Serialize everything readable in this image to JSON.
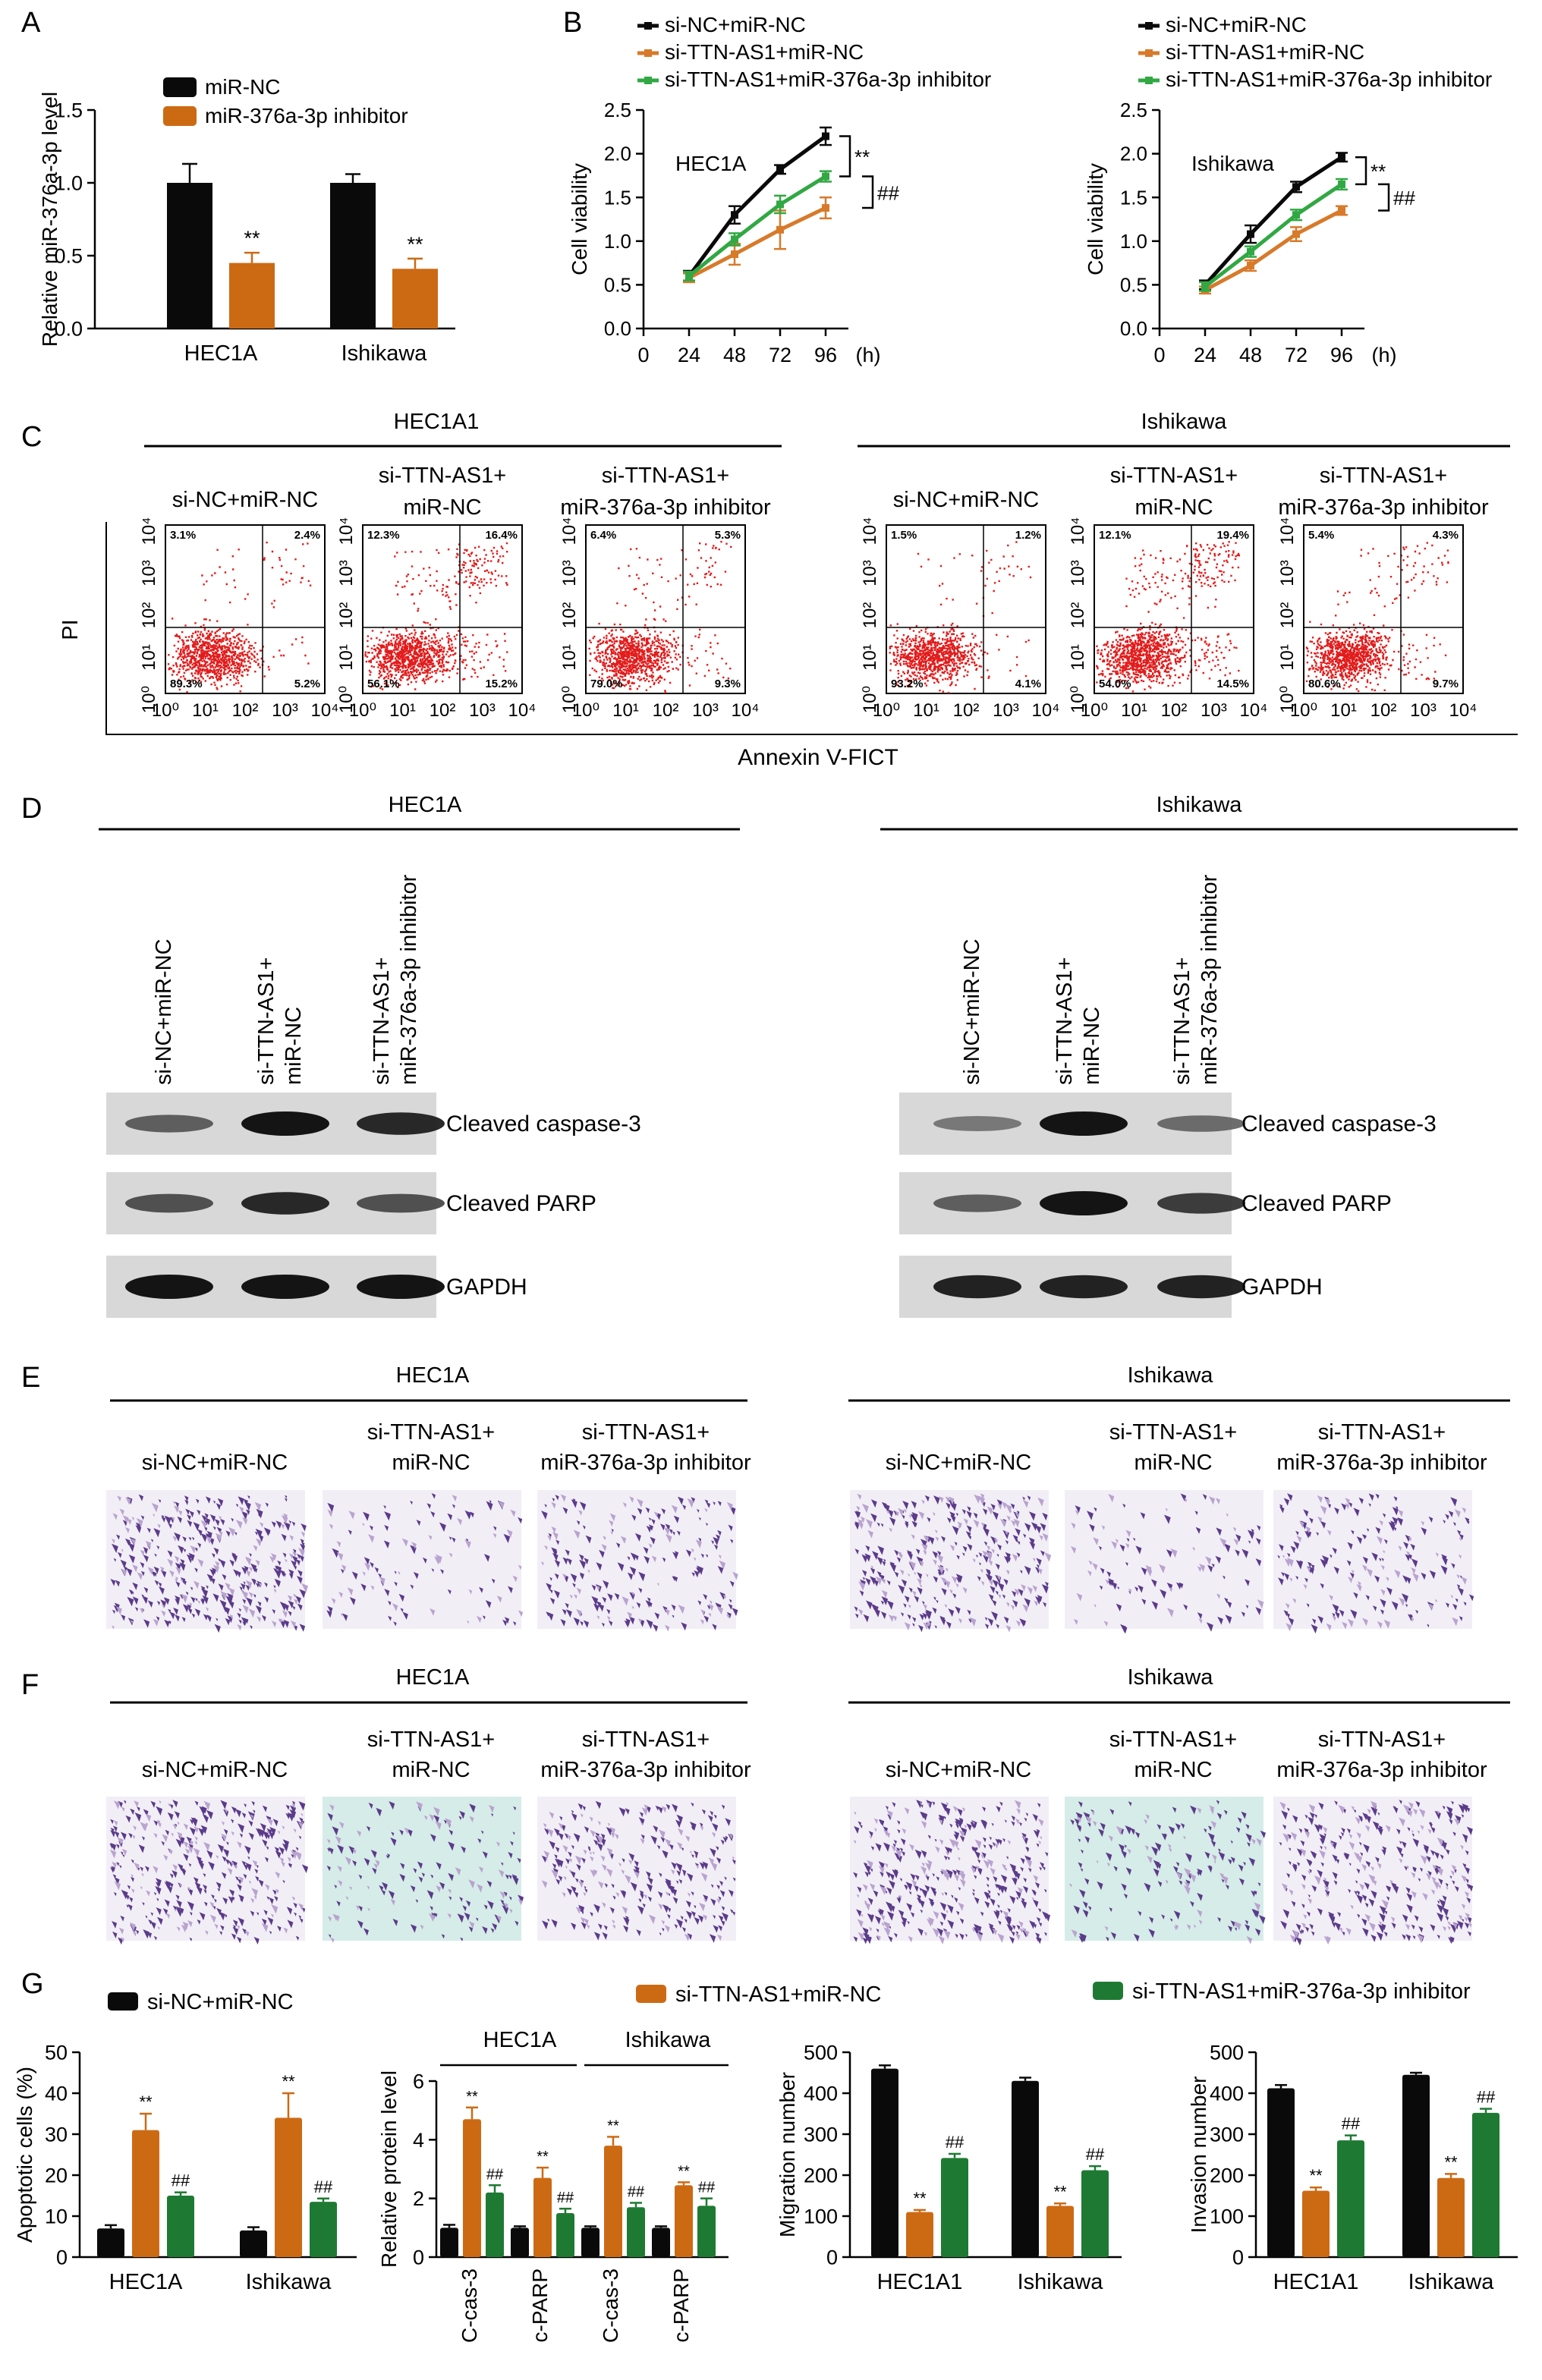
{
  "colors": {
    "black": "#0a0a0a",
    "orange": "#cc6a14",
    "green": "#1e7a32",
    "line_green": "#31a843",
    "line_orange": "#d77a2a",
    "dot_red": "#e21b1b",
    "stain": "#5b3b8a",
    "stain_light": "#b9a3cf",
    "stain_bg_teal": "#d6ece8"
  },
  "panels": {
    "A": {
      "letter": "A",
      "chart_data": {
        "type": "bar",
        "ylabel": "Relative miR-376a-3p level",
        "ylim": [
          0,
          1.5
        ],
        "yticks": [
          "0.0",
          "0.5",
          "1.0",
          "1.5"
        ],
        "categories": [
          "HEC1A",
          "Ishikawa"
        ],
        "series": [
          {
            "name": "miR-NC",
            "values": [
              1.0,
              1.0
            ],
            "errors": [
              0.13,
              0.06
            ]
          },
          {
            "name": "miR-376a-3p inhibitor",
            "values": [
              0.45,
              0.41
            ],
            "errors": [
              0.07,
              0.07
            ]
          }
        ],
        "annotations": [
          {
            "text": "**",
            "category": 0,
            "series": 1
          },
          {
            "text": "**",
            "category": 1,
            "series": 1
          }
        ]
      }
    },
    "B": {
      "letter": "B",
      "legend": [
        "si-NC+miR-NC",
        "si-TTN-AS1+miR-NC",
        "si-TTN-AS1+miR-376a-3p inhibitor"
      ],
      "chart_data": [
        {
          "type": "line",
          "annotation": "HEC1A",
          "ylabel": "Cell viability",
          "xlim": [
            0,
            108
          ],
          "ylim": [
            0,
            2.5
          ],
          "xticks": [
            "0",
            "24",
            "48",
            "72",
            "96"
          ],
          "x_unit": "(h)",
          "yticks": [
            "0.0",
            "0.5",
            "1.0",
            "1.5",
            "2.0",
            "2.5"
          ],
          "x": [
            24,
            48,
            72,
            96
          ],
          "series": [
            {
              "name": "si-NC+miR-NC",
              "values": [
                0.6,
                1.3,
                1.82,
                2.2
              ],
              "errors": [
                0.06,
                0.1,
                0.05,
                0.1
              ]
            },
            {
              "name": "si-TTN-AS1+miR-NC",
              "values": [
                0.58,
                0.85,
                1.13,
                1.38
              ],
              "errors": [
                0.05,
                0.12,
                0.22,
                0.12
              ]
            },
            {
              "name": "si-TTN-AS1+miR-376a-3p inhibitor",
              "values": [
                0.6,
                1.02,
                1.42,
                1.74
              ],
              "errors": [
                0.05,
                0.07,
                0.1,
                0.06
              ]
            }
          ],
          "brackets": [
            "**",
            "##"
          ]
        },
        {
          "type": "line",
          "annotation": "Ishikawa",
          "ylabel": "Cell viability",
          "xlim": [
            0,
            108
          ],
          "ylim": [
            0,
            2.5
          ],
          "xticks": [
            "0",
            "24",
            "48",
            "72",
            "96"
          ],
          "x_unit": "(h)",
          "yticks": [
            "0.0",
            "0.5",
            "1.0",
            "1.5",
            "2.0",
            "2.5"
          ],
          "x": [
            24,
            48,
            72,
            96
          ],
          "series": [
            {
              "name": "si-NC+miR-NC",
              "values": [
                0.5,
                1.08,
                1.62,
                1.96
              ],
              "errors": [
                0.05,
                0.1,
                0.06,
                0.05
              ]
            },
            {
              "name": "si-TTN-AS1+miR-NC",
              "values": [
                0.44,
                0.72,
                1.08,
                1.35
              ],
              "errors": [
                0.04,
                0.06,
                0.08,
                0.05
              ]
            },
            {
              "name": "si-TTN-AS1+miR-376a-3p inhibitor",
              "values": [
                0.48,
                0.88,
                1.3,
                1.65
              ],
              "errors": [
                0.05,
                0.06,
                0.06,
                0.06
              ]
            }
          ],
          "brackets": [
            "**",
            "##"
          ]
        }
      ]
    },
    "C": {
      "letter": "C",
      "group_left": "HEC1A1",
      "group_right": "Ishikawa",
      "y_axis_label": "PI",
      "x_axis_label": "Annexin V-FICT",
      "axis_ticks": [
        "10⁰",
        "10¹",
        "10²",
        "10³",
        "10⁴"
      ],
      "plots": [
        {
          "title": [
            "si-NC+miR-NC"
          ],
          "q": [
            "3.1%",
            "2.4%",
            "89.3%",
            "5.2%"
          ],
          "spread": 0.1
        },
        {
          "title": [
            "si-TTN-AS1+",
            "miR-NC"
          ],
          "q": [
            "12.3%",
            "16.4%",
            "56.1%",
            "15.2%"
          ],
          "spread": 0.35
        },
        {
          "title": [
            "si-TTN-AS1+",
            "miR-376a-3p inhibitor"
          ],
          "q": [
            "6.4%",
            "5.3%",
            "79.0%",
            "9.3%"
          ],
          "spread": 0.15
        },
        {
          "title": [
            "si-NC+miR-NC"
          ],
          "q": [
            "1.5%",
            "1.2%",
            "93.2%",
            "4.1%"
          ],
          "spread": 0.08
        },
        {
          "title": [
            "si-TTN-AS1+",
            "miR-NC"
          ],
          "q": [
            "12.1%",
            "19.4%",
            "54.0%",
            "14.5%"
          ],
          "spread": 0.38
        },
        {
          "title": [
            "si-TTN-AS1+",
            "miR-376a-3p inhibitor"
          ],
          "q": [
            "5.4%",
            "4.3%",
            "80.6%",
            "9.7%"
          ],
          "spread": 0.15
        }
      ]
    },
    "D": {
      "letter": "D",
      "groups": [
        {
          "name": "HEC1A",
          "lanes": [
            [
              "si-NC+miR-NC"
            ],
            [
              "si-TTN-AS1+",
              "miR-NC"
            ],
            [
              "si-TTN-AS1+",
              "miR-376a-3p inhibitor"
            ]
          ],
          "intensity": [
            [
              0.45,
              1.0,
              0.85
            ],
            [
              0.55,
              0.85,
              0.55
            ],
            [
              1.0,
              1.0,
              1.0
            ]
          ]
        },
        {
          "name": "Ishikawa",
          "lanes": [
            [
              "si-NC+miR-NC"
            ],
            [
              "si-TTN-AS1+",
              "miR-NC"
            ],
            [
              "si-TTN-AS1+",
              "miR-376a-3p inhibitor"
            ]
          ],
          "intensity": [
            [
              0.25,
              1.0,
              0.35
            ],
            [
              0.45,
              1.0,
              0.7
            ],
            [
              0.9,
              0.9,
              0.9
            ]
          ]
        }
      ],
      "blots": [
        "Cleaved caspase-3",
        "Cleaved PARP",
        "GAPDH"
      ]
    },
    "E": {
      "letter": "E",
      "group_left": "HEC1A",
      "group_right": "Ishikawa",
      "titles": [
        [
          "si-NC+miR-NC"
        ],
        [
          "si-TTN-AS1+",
          "miR-NC"
        ],
        [
          "si-TTN-AS1+",
          "miR-376a-3p inhibitor"
        ],
        [
          "si-NC+miR-NC"
        ],
        [
          "si-TTN-AS1+",
          "miR-NC"
        ],
        [
          "si-TTN-AS1+",
          "miR-376a-3p inhibitor"
        ]
      ],
      "density": [
        0.9,
        0.25,
        0.5,
        0.8,
        0.25,
        0.45
      ]
    },
    "F": {
      "letter": "F",
      "group_left": "HEC1A",
      "group_right": "Ishikawa",
      "titles": [
        [
          "si-NC+miR-NC"
        ],
        [
          "si-TTN-AS1+",
          "miR-NC"
        ],
        [
          "si-TTN-AS1+",
          "miR-376a-3p inhibitor"
        ],
        [
          "si-NC+miR-NC"
        ],
        [
          "si-TTN-AS1+",
          "miR-NC"
        ],
        [
          "si-TTN-AS1+",
          "miR-376a-3p inhibitor"
        ]
      ],
      "density": [
        0.85,
        0.35,
        0.65,
        0.9,
        0.4,
        0.75
      ]
    },
    "G": {
      "letter": "G",
      "legend": [
        "si-NC+miR-NC",
        "si-TTN-AS1+miR-NC",
        "si-TTN-AS1+miR-376a-3p inhibitor"
      ],
      "chart_data": [
        {
          "type": "bar",
          "ylabel": "Apoptotic cells (%)",
          "ylim": [
            0,
            50
          ],
          "yticks": [
            "0",
            "10",
            "20",
            "30",
            "40",
            "50"
          ],
          "categories": [
            "HEC1A",
            "Ishikawa"
          ],
          "values": [
            [
              7,
              31,
              15
            ],
            [
              6.5,
              34,
              13.5
            ]
          ],
          "errors": [
            [
              0.8,
              4,
              0.8
            ],
            [
              0.8,
              6,
              0.8
            ]
          ],
          "annotations": [
            [
              "",
              "**",
              "##"
            ],
            [
              "",
              "**",
              "##"
            ]
          ]
        },
        {
          "type": "bar",
          "ylabel": "Relative protein level",
          "ylim": [
            0,
            6
          ],
          "yticks": [
            "0",
            "2",
            "4",
            "6"
          ],
          "group_labels": [
            "HEC1A",
            "Ishikawa"
          ],
          "categories": [
            "C-cas-3",
            "c-PARP",
            "C-cas-3",
            "c-PARP"
          ],
          "values": [
            [
              1,
              4.7,
              2.2
            ],
            [
              1,
              2.7,
              1.5
            ],
            [
              1,
              3.8,
              1.7
            ],
            [
              1,
              2.45,
              1.75
            ]
          ],
          "errors": [
            [
              0.1,
              0.4,
              0.25
            ],
            [
              0.05,
              0.35,
              0.15
            ],
            [
              0.05,
              0.3,
              0.15
            ],
            [
              0.05,
              0.1,
              0.25
            ]
          ],
          "annotations": [
            [
              "",
              "**",
              "##"
            ],
            [
              "",
              "**",
              "##"
            ],
            [
              "",
              "**",
              "##"
            ],
            [
              "",
              "**",
              "##"
            ]
          ]
        },
        {
          "type": "bar",
          "ylabel": "Migration number",
          "ylim": [
            0,
            500
          ],
          "yticks": [
            "0",
            "100",
            "200",
            "300",
            "400",
            "500"
          ],
          "categories": [
            "HEC1A1",
            "Ishikawa"
          ],
          "values": [
            [
              460,
              110,
              242
            ],
            [
              430,
              125,
              212
            ]
          ],
          "errors": [
            [
              8,
              5,
              10
            ],
            [
              8,
              6,
              10
            ]
          ],
          "annotations": [
            [
              "",
              "**",
              "##"
            ],
            [
              "",
              "**",
              "##"
            ]
          ]
        },
        {
          "type": "bar",
          "ylabel": "Invasion number",
          "ylim": [
            0,
            500
          ],
          "yticks": [
            "0",
            "100",
            "200",
            "300",
            "400",
            "500"
          ],
          "categories": [
            "HEC1A1",
            "Ishikawa"
          ],
          "values": [
            [
              412,
              162,
              285
            ],
            [
              445,
              193,
              352
            ]
          ],
          "errors": [
            [
              8,
              8,
              12
            ],
            [
              5,
              10,
              10
            ]
          ],
          "annotations": [
            [
              "",
              "**",
              "##"
            ],
            [
              "",
              "**",
              "##"
            ]
          ]
        }
      ]
    }
  }
}
